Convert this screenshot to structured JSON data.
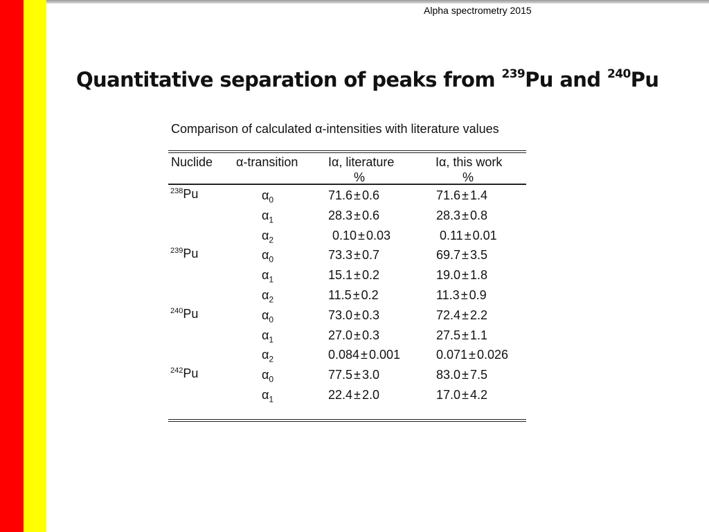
{
  "header_note": "Alpha spectrometry 2015",
  "title": {
    "prefix": "Quantitative separation of peaks from ",
    "iso1": "239",
    "el1": "Pu",
    "mid": " and ",
    "iso2": "240",
    "el2": "Pu"
  },
  "table": {
    "caption": "Comparison of calculated α-intensities with literature values",
    "headers": {
      "nuclide": "Nuclide",
      "transition": "α-transition",
      "lit": "Iα, literature",
      "lit_unit": "%",
      "work": "Iα, this work",
      "work_unit": "%"
    },
    "rows": [
      {
        "iso": "238",
        "el": "Pu",
        "tr": "α",
        "sub": "0",
        "lit_v": "71.6",
        "lit_e": "0.6",
        "work_v": "71.6",
        "work_e": "1.4"
      },
      {
        "iso": "",
        "el": "",
        "tr": "α",
        "sub": "1",
        "lit_v": "28.3",
        "lit_e": "0.6",
        "work_v": "28.3",
        "work_e": "0.8"
      },
      {
        "iso": "",
        "el": "",
        "tr": "α",
        "sub": "2",
        "lit_v": "0.10",
        "lit_e": "0.03",
        "work_v": "0.11",
        "work_e": "0.01"
      },
      {
        "iso": "239",
        "el": "Pu",
        "tr": "α",
        "sub": "0",
        "lit_v": "73.3",
        "lit_e": "0.7",
        "work_v": "69.7",
        "work_e": "3.5"
      },
      {
        "iso": "",
        "el": "",
        "tr": "α",
        "sub": "1",
        "lit_v": "15.1",
        "lit_e": "0.2",
        "work_v": "19.0",
        "work_e": "1.8"
      },
      {
        "iso": "",
        "el": "",
        "tr": "α",
        "sub": "2",
        "lit_v": "11.5",
        "lit_e": "0.2",
        "work_v": "11.3",
        "work_e": "0.9"
      },
      {
        "iso": "240",
        "el": "Pu",
        "tr": "α",
        "sub": "0",
        "lit_v": "73.0",
        "lit_e": "0.3",
        "work_v": "72.4",
        "work_e": "2.2"
      },
      {
        "iso": "",
        "el": "",
        "tr": "α",
        "sub": "1",
        "lit_v": "27.0",
        "lit_e": "0.3",
        "work_v": "27.5",
        "work_e": "1.1"
      },
      {
        "iso": "",
        "el": "",
        "tr": "α",
        "sub": "2",
        "lit_v": "0.084",
        "lit_e": "0.001",
        "work_v": "0.071",
        "work_e": "0.026"
      },
      {
        "iso": "242",
        "el": "Pu",
        "tr": "α",
        "sub": "0",
        "lit_v": "77.5",
        "lit_e": "3.0",
        "work_v": "83.0",
        "work_e": "7.5"
      },
      {
        "iso": "",
        "el": "",
        "tr": "α",
        "sub": "1",
        "lit_v": "22.4",
        "lit_e": "2.0",
        "work_v": "17.0",
        "work_e": "4.2"
      }
    ],
    "pm": "±"
  },
  "colors": {
    "left_bar": "#ff0000",
    "second_bar": "#ffff00"
  }
}
